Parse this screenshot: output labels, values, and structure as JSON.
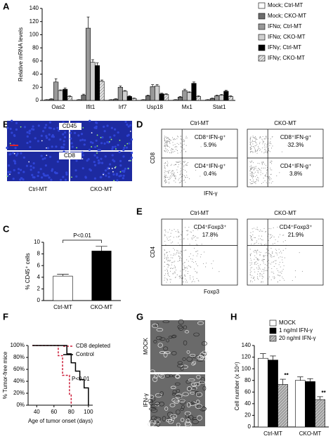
{
  "chart_data": [
    {
      "type": "bar",
      "panel": "A",
      "y_label": "Relative mRNA levels",
      "categories": [
        "Oas2",
        "Ifit1",
        "Irf7",
        "Usp18",
        "Mx1",
        "Stat1"
      ],
      "ylim": [
        0,
        140
      ],
      "yticks": [
        0,
        20,
        40,
        60,
        80,
        100,
        120,
        140
      ],
      "series": [
        {
          "name": "Mock; Ctrl-MT",
          "color": "#ffffff",
          "values": [
            1,
            1,
            1,
            1,
            1,
            1
          ],
          "errors": [
            0.3,
            0.3,
            0.3,
            0.3,
            0.3,
            0.3
          ]
        },
        {
          "name": "Mock; CKO-MT",
          "color": "#6e6e6e",
          "values": [
            2,
            8,
            2,
            7,
            5,
            3
          ],
          "errors": [
            0.5,
            1.5,
            0.5,
            1,
            1,
            0.5
          ]
        },
        {
          "name": "IFNα; Ctrl-MT",
          "color": "#999999",
          "values": [
            28,
            110,
            20,
            21,
            15,
            7
          ],
          "errors": [
            5,
            17,
            2,
            3,
            2,
            1
          ]
        },
        {
          "name": "IFNα; CKO-MT",
          "color": "#cfcfcf",
          "values": [
            15,
            58,
            14,
            22,
            12,
            8
          ],
          "errors": [
            1,
            4,
            1,
            2,
            1,
            1
          ]
        },
        {
          "name": "IFNγ; Ctrl-MT",
          "color": "#000000",
          "values": [
            17,
            53,
            6,
            10,
            26,
            14
          ],
          "errors": [
            2,
            4,
            1,
            1,
            2,
            1.5
          ]
        },
        {
          "name": "IFNγ; CKO-MT",
          "color": "#e6e6e6",
          "hatch": true,
          "values": [
            6,
            29,
            3,
            9,
            6,
            6
          ],
          "errors": [
            1,
            2,
            0.5,
            1,
            1,
            1
          ]
        }
      ]
    },
    {
      "type": "bar",
      "panel": "C",
      "y_label": "% CD45⁺ cells",
      "categories": [
        "Ctrl-MT",
        "CKO-MT"
      ],
      "ylim": [
        0,
        10
      ],
      "yticks": [
        0,
        2,
        4,
        6,
        8,
        10
      ],
      "annotations": [
        "P<0.01"
      ],
      "series": [
        {
          "colors": [
            "#ffffff",
            "#000000"
          ],
          "values": [
            4.2,
            8.5
          ],
          "errors": [
            0.3,
            0.8
          ]
        }
      ]
    },
    {
      "type": "line",
      "panel": "F",
      "x_label": "Age of tumor onset (days)",
      "y_label": "% Tumor-free mice",
      "xlim": [
        30,
        105
      ],
      "xticks": [
        40,
        60,
        80,
        100
      ],
      "ylim": [
        0,
        100
      ],
      "yticks": [
        {
          "value": 0,
          "label": "0%"
        },
        {
          "value": 20,
          "label": "20%"
        },
        {
          "value": 40,
          "label": "40%"
        },
        {
          "value": 60,
          "label": "60%"
        },
        {
          "value": 80,
          "label": "80%"
        },
        {
          "value": 100,
          "label": "100%"
        }
      ],
      "annotations": [
        "P<0.01"
      ],
      "series": [
        {
          "name": "CD8 depleted",
          "color": "#cc1f3a",
          "dash": true,
          "x": [
            35,
            65,
            65,
            70,
            70,
            78,
            78,
            80,
            80
          ],
          "values": [
            100,
            100,
            83,
            83,
            50,
            50,
            17,
            17,
            0
          ]
        },
        {
          "name": "Control",
          "color": "#000000",
          "x": [
            35,
            75,
            75,
            80,
            80,
            85,
            85,
            90,
            90,
            95,
            95,
            100,
            100
          ],
          "values": [
            100,
            100,
            86,
            86,
            71,
            71,
            57,
            57,
            43,
            43,
            29,
            29,
            0
          ]
        }
      ]
    },
    {
      "type": "bar",
      "panel": "H",
      "y_label": "Cell number (x 10⁴)",
      "categories": [
        "Ctrl-MT",
        "CKO-MT"
      ],
      "ylim": [
        0,
        140
      ],
      "yticks": [
        0,
        20,
        40,
        60,
        80,
        100,
        120,
        140
      ],
      "annotations": [
        "**",
        "**"
      ],
      "series": [
        {
          "name": "MOCK",
          "color": "#ffffff",
          "values": [
            118,
            80
          ],
          "errors": [
            8,
            6
          ]
        },
        {
          "name": "1 ng/ml IFN-γ",
          "color": "#000000",
          "values": [
            115,
            78
          ],
          "errors": [
            7,
            5
          ]
        },
        {
          "name": "20 ng/ml IFN-γ",
          "color": "#bdbdbd",
          "hatch": true,
          "values": [
            73,
            47
          ],
          "errors": [
            9,
            5
          ]
        }
      ]
    }
  ],
  "images": [
    {
      "panel": "B",
      "rows": [
        "CD45",
        "CD8"
      ],
      "columns": [
        "Ctrl-MT",
        "CKO-MT"
      ]
    },
    {
      "panel": "G",
      "rows": [
        "MOCK",
        "IFN-γ"
      ]
    }
  ],
  "flow_panels": [
    {
      "panel": "D",
      "columns": [
        "Ctrl-MT",
        "CKO-MT"
      ],
      "y_label": "CD8",
      "x_label": "IFN-γ",
      "quadrants": [
        [
          {
            "label": "CD8⁺IFN-g⁺",
            "value": "5.9%"
          },
          {
            "label": "CD4⁺IFN-g⁺",
            "value": "0.4%"
          }
        ],
        [
          {
            "label": "CD8⁺IFN-g⁺",
            "value": "32.3%"
          },
          {
            "label": "CD4⁺IFN-g⁺",
            "value": "3.8%"
          }
        ]
      ]
    },
    {
      "panel": "E",
      "columns": [
        "Ctrl-MT",
        "CKO-MT"
      ],
      "y_label": "CD4",
      "x_label": "Foxp3",
      "quadrants": [
        [
          {
            "label": "CD4⁺Foxp3⁺",
            "value": "17.8%"
          }
        ],
        [
          {
            "label": "CD4⁺Foxp3⁺",
            "value": "21.9%"
          }
        ]
      ]
    }
  ]
}
